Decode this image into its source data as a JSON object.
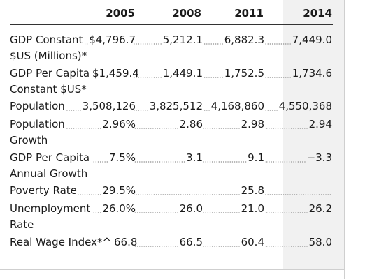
{
  "table": {
    "years": [
      "2005",
      "2008",
      "2011",
      "2014"
    ],
    "rows": [
      {
        "label_lines": [
          "GDP Constant",
          "$US (Millions)*"
        ],
        "values": [
          "$4,796.7",
          "5,212.1",
          "6,882.3",
          "7,449.0"
        ]
      },
      {
        "label_lines": [
          "GDP Per Capita",
          "Constant $US*"
        ],
        "values": [
          "$1,459.4",
          "1,449.1",
          "1,752.5",
          "1,734.6"
        ]
      },
      {
        "label_lines": [
          "Population"
        ],
        "values": [
          "3,508,126",
          "3,825,512",
          "4,168,860",
          "4,550,368"
        ]
      },
      {
        "label_lines": [
          "Population",
          "Growth"
        ],
        "values": [
          "2.96%",
          "2.86",
          "2.98",
          "2.94"
        ]
      },
      {
        "label_lines": [
          "GDP Per Capita",
          "Annual Growth"
        ],
        "values": [
          "7.5%",
          "3.1",
          "9.1",
          "−3.3"
        ]
      },
      {
        "label_lines": [
          "Poverty Rate"
        ],
        "values": [
          "29.5%",
          "",
          "25.8",
          ""
        ]
      },
      {
        "label_lines": [
          "Unemployment",
          "Rate"
        ],
        "values": [
          "26.0%",
          "26.0",
          "21.0",
          "26.2"
        ]
      },
      {
        "label_lines": [
          "Real Wage Index*^"
        ],
        "values": [
          "66.8",
          "66.5",
          "60.4",
          "58.0"
        ]
      }
    ]
  }
}
